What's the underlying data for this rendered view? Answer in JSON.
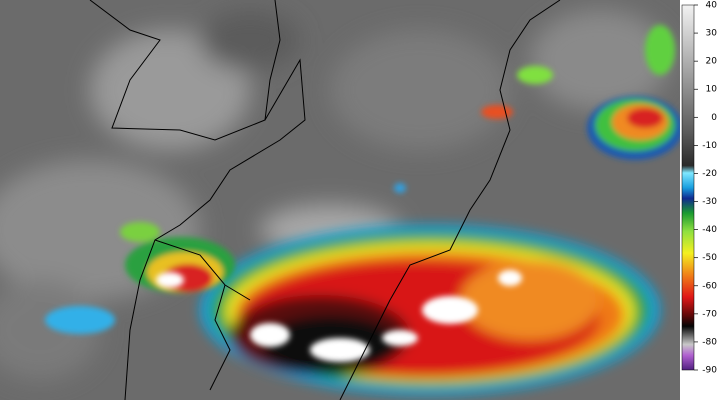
{
  "colorbar": {
    "ticks": [
      40,
      30,
      20,
      10,
      0,
      -10,
      -20,
      -30,
      -40,
      -50,
      -60,
      -70,
      -80,
      -90
    ]
  }
}
